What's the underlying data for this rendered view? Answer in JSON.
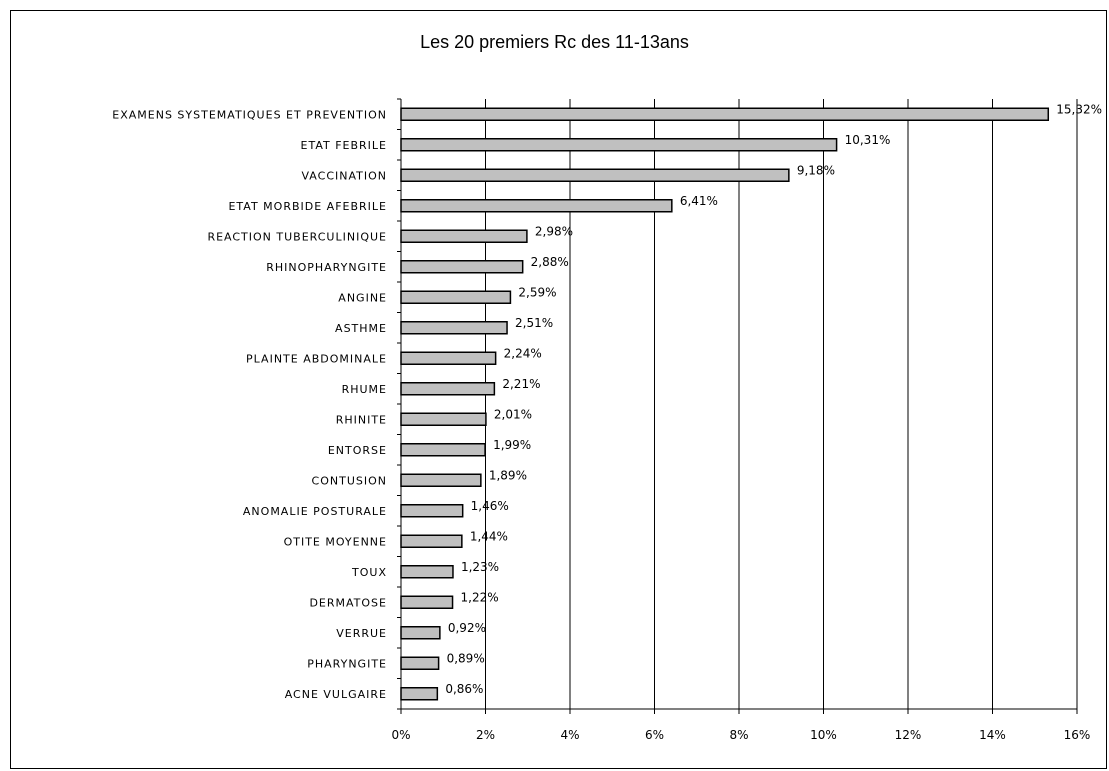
{
  "chart_data": {
    "type": "bar",
    "orientation": "horizontal",
    "title": "Les 20 premiers Rc des 11-13ans",
    "xlabel": "",
    "ylabel": "",
    "xlim": [
      0,
      16
    ],
    "x_ticks": [
      "0%",
      "2%",
      "4%",
      "6%",
      "8%",
      "10%",
      "12%",
      "14%",
      "16%"
    ],
    "grid": "vertical",
    "bar_color": "#c0c0c0",
    "categories": [
      "EXAMENS SYSTEMATIQUES ET PREVENTION",
      "ETAT FEBRILE",
      "VACCINATION",
      "ETAT MORBIDE AFEBRILE",
      "REACTION TUBERCULINIQUE",
      "RHINOPHARYNGITE",
      "ANGINE",
      "ASTHME",
      "PLAINTE ABDOMINALE",
      "RHUME",
      "RHINITE",
      "ENTORSE",
      "CONTUSION",
      "ANOMALIE POSTURALE",
      "OTITE MOYENNE",
      "TOUX",
      "DERMATOSE",
      "VERRUE",
      "PHARYNGITE",
      "ACNE VULGAIRE"
    ],
    "values": [
      15.32,
      10.31,
      9.18,
      6.41,
      2.98,
      2.88,
      2.59,
      2.51,
      2.24,
      2.21,
      2.01,
      1.99,
      1.89,
      1.46,
      1.44,
      1.23,
      1.22,
      0.92,
      0.89,
      0.86
    ],
    "value_labels": [
      "15,32%",
      "10,31%",
      "9,18%",
      "6,41%",
      "2,98%",
      "2,88%",
      "2,59%",
      "2,51%",
      "2,24%",
      "2,21%",
      "2,01%",
      "1,99%",
      "1,89%",
      "1,46%",
      "1,44%",
      "1,23%",
      "1,22%",
      "0,92%",
      "0,89%",
      "0,86%"
    ]
  }
}
